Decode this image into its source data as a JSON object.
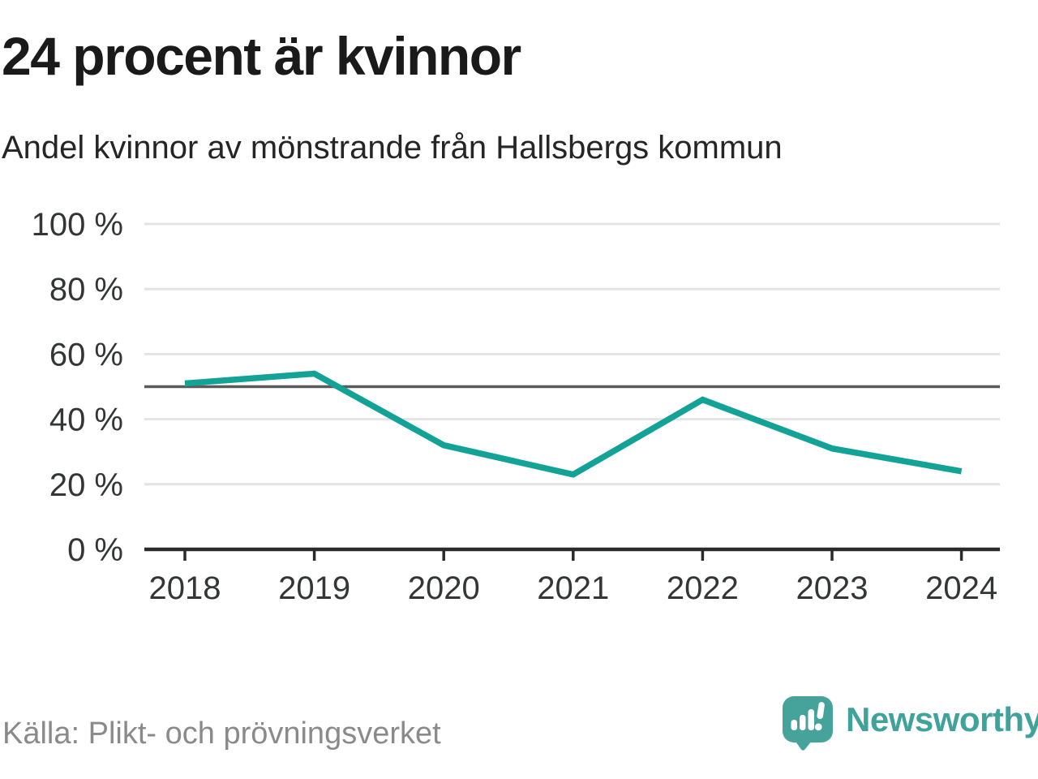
{
  "header": {
    "title": "24 procent är kvinnor",
    "subtitle": "Andel kvinnor av mönstrande från Hallsbergs kommun"
  },
  "footer": {
    "source": "Källa: Plikt- och prövningsverket",
    "brand": "Newsworthy",
    "logo_icon": "newsworthy-speech-bubble-bar-chart-icon"
  },
  "colors": {
    "accent_teal": "#12a296",
    "brand_teal": "#3fa29b",
    "grid": "#e4e4e4",
    "reference_line": "#5a5a5a",
    "axis": "#2b2b2b",
    "tick_text": "#333536",
    "title_text": "#1a1a1a",
    "source_text": "#8a8a8a"
  },
  "chart_data": {
    "type": "line",
    "title": "24 procent är kvinnor",
    "subtitle": "Andel kvinnor av mönstrande från Hallsbergs kommun",
    "source": "Källa: Plikt- och prövningsverket",
    "categories": [
      "2018",
      "2019",
      "2020",
      "2021",
      "2022",
      "2023",
      "2024"
    ],
    "series": [
      {
        "name": "Andel kvinnor av mönstrande",
        "values": [
          51,
          54,
          32,
          23,
          46,
          31,
          24
        ]
      }
    ],
    "unit": "%",
    "ylim": [
      0,
      100
    ],
    "yticks": [
      0,
      20,
      40,
      60,
      80,
      100
    ],
    "ytick_suffix": " %",
    "reference_line": 50,
    "grid": true,
    "legend": "none",
    "line_color": "#12a296"
  }
}
